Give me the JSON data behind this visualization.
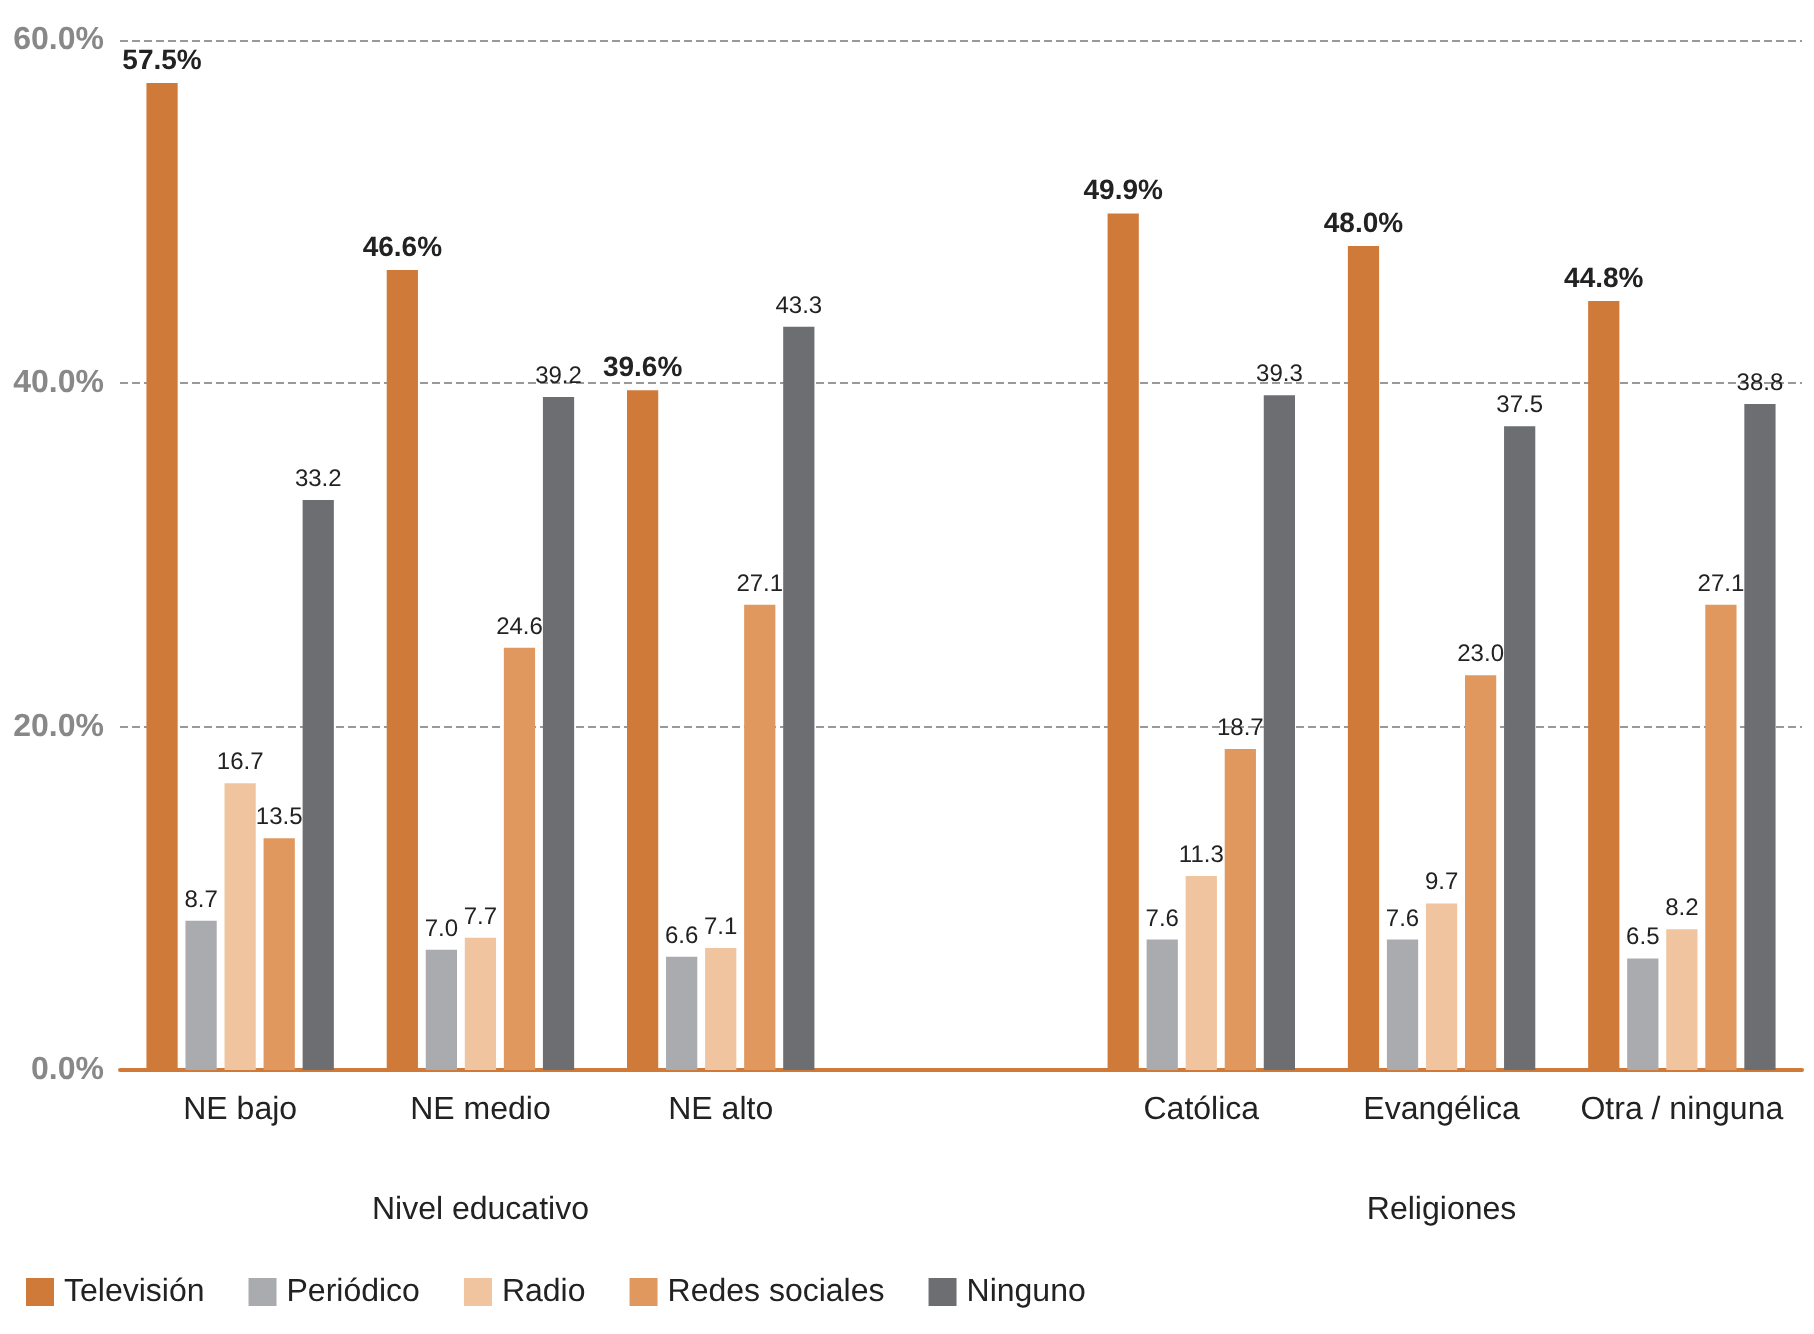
{
  "chart_data": {
    "type": "bar",
    "categories": [
      "NE bajo",
      "NE medio",
      "NE alto",
      null,
      "Católica",
      "Evangélica",
      "Otra / ninguna"
    ],
    "series": [
      {
        "name": "Televisión",
        "color": "#d07a3a",
        "values": [
          57.5,
          46.6,
          39.6,
          null,
          49.9,
          48.0,
          44.8
        ],
        "value_labels": [
          "57.5%",
          "46.6%",
          "39.6%",
          null,
          "49.9%",
          "48.0%",
          "44.8%"
        ]
      },
      {
        "name": "Periódico",
        "color": "#a9abae",
        "values": [
          8.7,
          7.0,
          6.6,
          null,
          7.6,
          7.6,
          6.5
        ],
        "value_labels": [
          "8.7",
          "7.0",
          "6.6",
          null,
          "7.6",
          "7.6",
          "6.5"
        ]
      },
      {
        "name": "Radio",
        "color": "#f0c49e",
        "values": [
          16.7,
          7.7,
          7.1,
          null,
          11.3,
          9.7,
          8.2
        ],
        "value_labels": [
          "16.7",
          "7.7",
          "7.1",
          null,
          "11.3",
          "9.7",
          "8.2"
        ]
      },
      {
        "name": "Redes sociales",
        "color": "#e0985e",
        "values": [
          13.5,
          24.6,
          27.1,
          null,
          18.7,
          23.0,
          27.1
        ],
        "value_labels": [
          "13.5",
          "24.6",
          "27.1",
          null,
          "18.7",
          "23.0",
          "27.1"
        ]
      },
      {
        "name": "Ninguno",
        "color": "#6d6e71",
        "values": [
          33.2,
          39.2,
          43.3,
          null,
          39.3,
          37.5,
          38.8
        ],
        "value_labels": [
          "33.2",
          "39.2",
          "43.3",
          null,
          "39.3",
          "37.5",
          "38.8"
        ]
      }
    ],
    "ylim": [
      0,
      60
    ],
    "yticks": [
      {
        "value": 0,
        "label": "0.0%"
      },
      {
        "value": 20,
        "label": "20.0%"
      },
      {
        "value": 40,
        "label": "40.0%"
      },
      {
        "value": 60,
        "label": "60.0%"
      }
    ],
    "grid": "y",
    "legend": "bottom left",
    "annotations": [
      "Nivel educativo",
      "Religiones"
    ]
  }
}
